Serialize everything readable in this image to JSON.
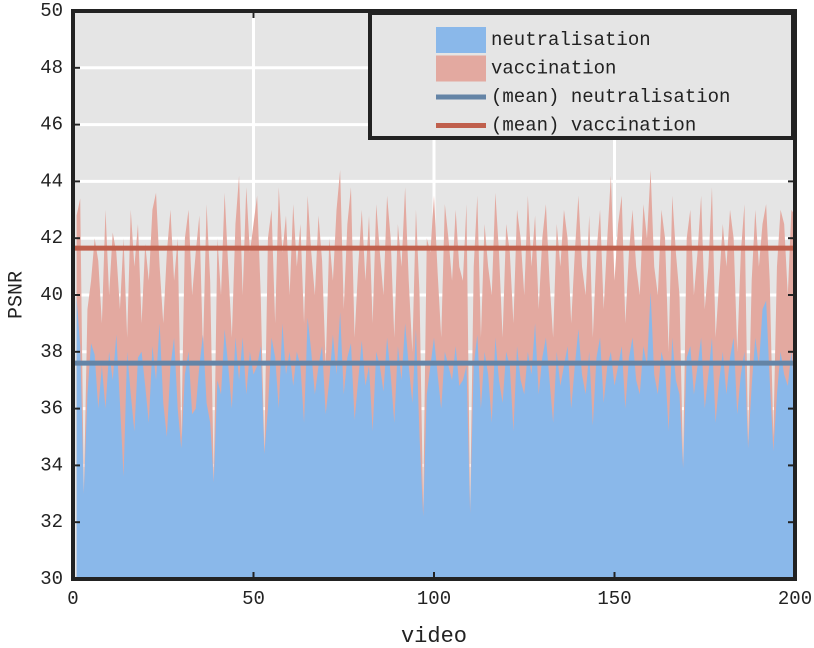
{
  "chart_data": {
    "type": "area",
    "xlabel": "video",
    "ylabel": "PSNR",
    "xlim": [
      0,
      200
    ],
    "xticks": [
      0,
      50,
      100,
      150,
      200
    ],
    "ylim": [
      30,
      50
    ],
    "yticks": [
      30,
      32,
      34,
      36,
      38,
      40,
      42,
      44,
      46,
      48,
      50
    ],
    "grid": true,
    "legend": "upper right",
    "x": [
      1,
      2,
      3,
      4,
      5,
      6,
      7,
      8,
      9,
      10,
      11,
      12,
      13,
      14,
      15,
      16,
      17,
      18,
      19,
      20,
      21,
      22,
      23,
      24,
      25,
      26,
      27,
      28,
      29,
      30,
      31,
      32,
      33,
      34,
      35,
      36,
      37,
      38,
      39,
      40,
      41,
      42,
      43,
      44,
      45,
      46,
      47,
      48,
      49,
      50,
      51,
      52,
      53,
      54,
      55,
      56,
      57,
      58,
      59,
      60,
      61,
      62,
      63,
      64,
      65,
      66,
      67,
      68,
      69,
      70,
      71,
      72,
      73,
      74,
      75,
      76,
      77,
      78,
      79,
      80,
      81,
      82,
      83,
      84,
      85,
      86,
      87,
      88,
      89,
      90,
      91,
      92,
      93,
      94,
      95,
      96,
      97,
      98,
      99,
      100,
      101,
      102,
      103,
      104,
      105,
      106,
      107,
      108,
      109,
      110,
      111,
      112,
      113,
      114,
      115,
      116,
      117,
      118,
      119,
      120,
      121,
      122,
      123,
      124,
      125,
      126,
      127,
      128,
      129,
      130,
      131,
      132,
      133,
      134,
      135,
      136,
      137,
      138,
      139,
      140,
      141,
      142,
      143,
      144,
      145,
      146,
      147,
      148,
      149,
      150,
      151,
      152,
      153,
      154,
      155,
      156,
      157,
      158,
      159,
      160,
      161,
      162,
      163,
      164,
      165,
      166,
      167,
      168,
      169,
      170,
      171,
      172,
      173,
      174,
      175,
      176,
      177,
      178,
      179,
      180,
      181,
      182,
      183,
      184,
      185,
      186,
      187,
      188,
      189,
      190,
      191,
      192,
      193,
      194,
      195,
      196,
      197,
      198,
      199,
      200
    ],
    "series": [
      {
        "name": "neutralisation",
        "color": "#8ab8ea",
        "values": [
          39.9,
          38.2,
          33.0,
          36.5,
          38.3,
          37.9,
          36.0,
          37.5,
          36.0,
          38.0,
          37.0,
          38.6,
          36.2,
          33.6,
          38.0,
          36.5,
          35.2,
          37.8,
          38.0,
          36.8,
          35.5,
          38.2,
          37.0,
          39.0,
          36.2,
          35.0,
          37.5,
          38.5,
          36.0,
          34.6,
          37.2,
          38.0,
          35.8,
          36.0,
          37.5,
          38.6,
          36.2,
          35.5,
          33.4,
          37.0,
          36.5,
          38.8,
          37.5,
          36.0,
          38.5,
          37.0,
          38.5,
          36.5,
          38.0,
          37.2,
          37.5,
          38.2,
          34.4,
          36.0,
          38.5,
          37.8,
          36.0,
          39.0,
          37.2,
          38.0,
          36.8,
          38.0,
          37.5,
          35.5,
          39.2,
          38.0,
          36.5,
          37.5,
          38.2,
          35.8,
          37.0,
          38.6,
          37.2,
          39.4,
          36.5,
          37.8,
          38.3,
          35.6,
          37.0,
          38.4,
          36.8,
          37.5,
          35.2,
          38.0,
          37.5,
          36.6,
          38.5,
          37.2,
          35.5,
          38.2,
          37.0,
          39.0,
          37.5,
          36.2,
          38.8,
          35.0,
          32.2,
          36.5,
          37.5,
          38.5,
          37.2,
          36.0,
          38.0,
          37.5,
          37.0,
          38.2,
          36.8,
          37.0,
          37.5,
          32.3,
          37.5,
          38.6,
          36.0,
          38.0,
          37.2,
          35.5,
          38.5,
          37.0,
          36.2,
          38.0,
          37.5,
          35.2,
          38.2,
          37.0,
          36.5,
          38.0,
          37.2,
          39.0,
          36.5,
          37.8,
          38.5,
          37.0,
          35.5,
          38.0,
          36.8,
          37.5,
          38.2,
          36.0,
          37.5,
          38.8,
          37.2,
          36.5,
          38.0,
          35.4,
          37.8,
          38.5,
          36.2,
          37.5,
          38.0,
          36.8,
          37.5,
          38.2,
          36.0,
          37.8,
          38.5,
          37.0,
          36.5,
          38.2,
          37.5,
          40.1,
          37.2,
          36.5,
          38.0,
          37.5,
          35.2,
          38.5,
          37.0,
          36.5,
          33.9,
          37.8,
          38.2,
          36.5,
          37.5,
          38.5,
          36.0,
          37.2,
          38.5,
          35.5,
          37.0,
          38.0,
          36.5,
          37.8,
          38.5,
          35.8,
          37.2,
          38.0,
          34.6,
          36.8,
          38.5,
          37.5,
          39.5,
          39.8,
          37.0,
          34.5,
          36.5,
          38.0,
          37.2,
          36.8,
          38.0,
          36.5
        ]
      },
      {
        "name": "vaccination",
        "color": "#e3a9a0",
        "values": [
          42.8,
          43.4,
          33.0,
          39.5,
          40.5,
          42.0,
          41.2,
          39.0,
          43.0,
          40.0,
          42.2,
          41.5,
          39.5,
          42.0,
          38.5,
          43.0,
          41.0,
          42.5,
          39.0,
          41.8,
          40.5,
          43.0,
          43.6,
          41.0,
          39.0,
          41.5,
          43.0,
          40.5,
          42.0,
          35.0,
          42.0,
          43.0,
          40.0,
          41.5,
          42.8,
          38.0,
          43.2,
          40.5,
          33.5,
          42.0,
          40.0,
          43.6,
          41.0,
          38.5,
          42.5,
          44.2,
          40.0,
          43.8,
          41.5,
          42.5,
          43.5,
          40.0,
          34.5,
          42.0,
          43.0,
          39.0,
          43.8,
          41.5,
          42.8,
          40.0,
          43.2,
          41.0,
          42.5,
          39.0,
          43.5,
          41.5,
          40.0,
          42.8,
          41.2,
          37.5,
          42.0,
          40.5,
          43.0,
          44.4,
          39.5,
          42.5,
          43.8,
          38.5,
          41.0,
          43.0,
          40.5,
          42.8,
          39.0,
          43.2,
          41.5,
          40.0,
          43.5,
          42.0,
          38.5,
          42.5,
          41.0,
          43.8,
          40.5,
          38.0,
          43.0,
          40.0,
          32.5,
          42.0,
          41.5,
          43.5,
          40.8,
          38.5,
          43.2,
          42.0,
          40.5,
          43.0,
          41.0,
          40.5,
          43.2,
          32.4,
          41.0,
          43.5,
          38.5,
          42.5,
          41.0,
          40.0,
          43.6,
          41.5,
          38.5,
          42.5,
          41.5,
          39.0,
          43.0,
          42.0,
          40.0,
          43.5,
          41.0,
          42.8,
          39.5,
          42.0,
          43.2,
          40.5,
          38.5,
          42.5,
          41.0,
          43.0,
          42.0,
          39.0,
          41.5,
          43.5,
          41.0,
          40.0,
          42.8,
          38.5,
          41.5,
          43.0,
          39.5,
          42.0,
          44.2,
          40.5,
          42.5,
          43.5,
          39.0,
          41.5,
          43.0,
          41.0,
          40.0,
          43.2,
          42.0,
          44.4,
          41.0,
          40.0,
          43.0,
          42.0,
          38.0,
          43.5,
          41.5,
          40.0,
          34.0,
          42.0,
          43.0,
          40.0,
          41.5,
          43.5,
          39.5,
          41.0,
          43.8,
          38.5,
          40.5,
          42.5,
          41.0,
          43.0,
          42.0,
          38.0,
          41.5,
          43.2,
          34.8,
          40.5,
          43.0,
          41.0,
          42.5,
          43.2,
          40.5,
          35.0,
          41.0,
          43.0,
          42.5,
          40.0,
          43.0,
          42.8
        ]
      },
      {
        "name": "(mean) neutralisation",
        "color": "#6484a6",
        "value": 37.6
      },
      {
        "name": "(mean) vaccination",
        "color": "#c0604d",
        "value": 41.65
      }
    ]
  }
}
